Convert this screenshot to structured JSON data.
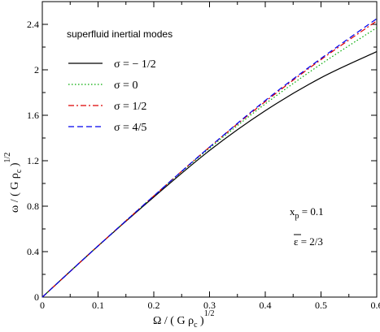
{
  "chart_data": {
    "type": "line",
    "title": "",
    "annotation_title": "superfluid  inertial  modes",
    "xlabel": {
      "main": "Ω / ( G ρ",
      "sub": "c",
      "close": " )",
      "sup": "1/2"
    },
    "ylabel": {
      "main": "ω / ( G ρ",
      "sub": "c",
      "close": " )",
      "sup": "1/2"
    },
    "xlim": [
      0,
      0.6
    ],
    "ylim": [
      0,
      2.6
    ],
    "xticks": [
      "0",
      "0.1",
      "0.2",
      "0.3",
      "0.4",
      "0.5",
      "0.6"
    ],
    "yticks": [
      "0",
      "0.4",
      "0.8",
      "1.2",
      "1.6",
      "2",
      "2.4"
    ],
    "grid": false,
    "legend_position": "top-left",
    "series": [
      {
        "name": "σ = − 1/2",
        "color": "#000000",
        "dash": "solid",
        "x": [
          0,
          0.1,
          0.2,
          0.3,
          0.4,
          0.5,
          0.6
        ],
        "y": [
          0,
          0.45,
          0.88,
          1.29,
          1.64,
          1.93,
          2.16
        ]
      },
      {
        "name": "σ =  0",
        "color": "#00aa00",
        "dash": "dotted",
        "x": [
          0,
          0.1,
          0.2,
          0.3,
          0.4,
          0.5,
          0.6
        ],
        "y": [
          0,
          0.45,
          0.89,
          1.31,
          1.7,
          2.05,
          2.37
        ]
      },
      {
        "name": "σ =  1/2",
        "color": "#dd0000",
        "dash": "dashdot",
        "x": [
          0,
          0.1,
          0.2,
          0.3,
          0.4,
          0.5,
          0.6
        ],
        "y": [
          0,
          0.45,
          0.89,
          1.32,
          1.72,
          2.09,
          2.43
        ]
      },
      {
        "name": "σ =  4/5",
        "color": "#0000ee",
        "dash": "dashed",
        "x": [
          0,
          0.1,
          0.2,
          0.3,
          0.4,
          0.5,
          0.6
        ],
        "y": [
          0,
          0.45,
          0.89,
          1.32,
          1.73,
          2.1,
          2.45
        ]
      }
    ],
    "annotations": [
      {
        "main": "x",
        "sub": "p",
        "rest": " = 0.1"
      },
      {
        "main": "ε",
        "rest": " = 2/3",
        "overline": true
      }
    ]
  }
}
